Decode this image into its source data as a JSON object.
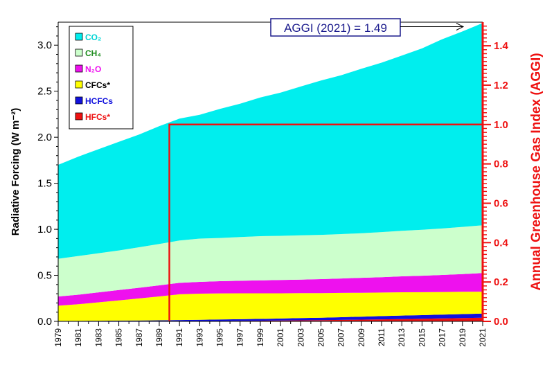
{
  "chart_data": {
    "type": "area",
    "title": "",
    "xlabel": "",
    "ylabel": "Radiative Forcing (W m⁻²)",
    "y2label": "Annual Greenhouse Gas Index (AGGI)",
    "ylim": [
      0,
      3.25
    ],
    "y2lim": [
      0,
      1.52
    ],
    "yticks": [
      "0.0",
      "0.5",
      "1.0",
      "1.5",
      "2.0",
      "2.5",
      "3.0"
    ],
    "y2ticks": [
      "0.0",
      "0.2",
      "0.4",
      "0.6",
      "0.8",
      "1.0",
      "1.2",
      "1.4"
    ],
    "x": [
      1979,
      1981,
      1983,
      1985,
      1987,
      1989,
      1991,
      1993,
      1995,
      1997,
      1999,
      2001,
      2003,
      2005,
      2007,
      2009,
      2011,
      2013,
      2015,
      2017,
      2019,
      2021
    ],
    "xticks": [
      "1979",
      "1981",
      "1983",
      "1985",
      "1987",
      "1989",
      "1991",
      "1993",
      "1995",
      "1997",
      "1999",
      "2001",
      "2003",
      "2005",
      "2007",
      "2009",
      "2011",
      "2013",
      "2015",
      "2017",
      "2019",
      "2021"
    ],
    "series_order": "bottom-to-top stacked",
    "series": [
      {
        "name": "HFCs*",
        "color": "#ee1111",
        "values": [
          0,
          0,
          0,
          0,
          0,
          0.001,
          0.002,
          0.003,
          0.004,
          0.005,
          0.007,
          0.009,
          0.011,
          0.013,
          0.016,
          0.019,
          0.022,
          0.025,
          0.028,
          0.032,
          0.036,
          0.04
        ]
      },
      {
        "name": "HCFCs",
        "color": "#1111dd",
        "values": [
          0.005,
          0.006,
          0.007,
          0.008,
          0.009,
          0.01,
          0.012,
          0.014,
          0.016,
          0.018,
          0.02,
          0.022,
          0.024,
          0.026,
          0.029,
          0.032,
          0.035,
          0.038,
          0.04,
          0.042,
          0.043,
          0.044
        ]
      },
      {
        "name": "CFCs*",
        "color": "#ffff00",
        "values": [
          0.165,
          0.18,
          0.2,
          0.22,
          0.24,
          0.26,
          0.28,
          0.284,
          0.284,
          0.282,
          0.278,
          0.274,
          0.271,
          0.268,
          0.264,
          0.26,
          0.256,
          0.253,
          0.249,
          0.245,
          0.242,
          0.239
        ]
      },
      {
        "name": "N₂O",
        "color": "#ee11ee",
        "values": [
          0.1,
          0.104,
          0.108,
          0.112,
          0.116,
          0.12,
          0.124,
          0.128,
          0.132,
          0.136,
          0.14,
          0.144,
          0.148,
          0.152,
          0.157,
          0.162,
          0.167,
          0.173,
          0.179,
          0.185,
          0.193,
          0.201
        ]
      },
      {
        "name": "CH₄",
        "color": "#ccffcc",
        "values": [
          0.41,
          0.42,
          0.425,
          0.43,
          0.44,
          0.45,
          0.46,
          0.47,
          0.47,
          0.475,
          0.48,
          0.48,
          0.48,
          0.481,
          0.482,
          0.485,
          0.49,
          0.494,
          0.499,
          0.505,
          0.512,
          0.52
        ]
      },
      {
        "name": "CO₂",
        "color": "#00eeee",
        "values": [
          1.02,
          1.08,
          1.13,
          1.18,
          1.225,
          1.28,
          1.324,
          1.345,
          1.402,
          1.448,
          1.507,
          1.555,
          1.617,
          1.676,
          1.726,
          1.786,
          1.84,
          1.904,
          1.97,
          2.056,
          2.123,
          2.196
        ]
      }
    ],
    "legend": {
      "position": "top-left",
      "items": [
        "CO₂",
        "CH₄",
        "N₂O",
        "CFCs*",
        "HCFCs",
        "HFCs*"
      ]
    },
    "overlay": {
      "color": "#ee1111",
      "start_year": 1990,
      "aggi_level": 1.0,
      "description_axis": "right"
    },
    "annotation": {
      "text": "AGGI (2021) = 1.49",
      "target_year": 2021,
      "target_value": 1.49
    }
  }
}
